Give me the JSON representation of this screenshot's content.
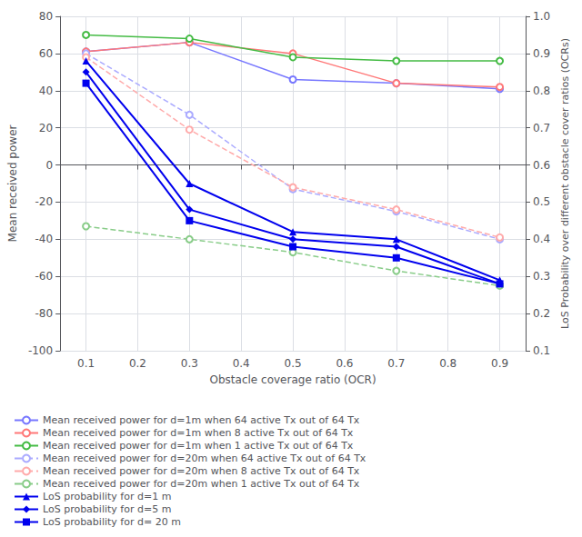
{
  "chart_data": {
    "type": "line",
    "xlabel": "Obstacle coverage ratio (OCR)",
    "ylabel": "Mean received power",
    "y2label": "LoS Probability over different obstacle cover ratios (OCRs)",
    "x": [
      0.1,
      0.3,
      0.5,
      0.7,
      0.9
    ],
    "series": [
      {
        "name": "Mean received power for d=1m when 64 active Tx out of 64 Tx",
        "color": "#7777FF",
        "marker": "circle",
        "line_style": "solid",
        "axis": "y",
        "values": [
          61,
          66,
          46,
          44,
          41
        ]
      },
      {
        "name": "Mean received power for d=1m when 8 active Tx out of 64 Tx",
        "color": "#FF7777",
        "marker": "circle",
        "line_style": "solid",
        "axis": "y",
        "values": [
          61,
          66,
          60,
          44,
          42
        ]
      },
      {
        "name": "Mean received power for d=1m when 1 active Tx out of 64 Tx",
        "color": "#44BB44",
        "marker": "circle",
        "line_style": "solid",
        "axis": "y",
        "values": [
          70,
          68,
          58,
          56,
          56
        ]
      },
      {
        "name": "Mean received power for d=20m when 64 active Tx out of 64 Tx",
        "color": "#AAAAFF",
        "marker": "circle",
        "line_style": "dashed",
        "axis": "y",
        "values": [
          60,
          27,
          -13,
          -25,
          -40
        ]
      },
      {
        "name": "Mean received power for d=20m when 8 active Tx out of 64 Tx",
        "color": "#FFAAAA",
        "marker": "circle",
        "line_style": "dashed",
        "axis": "y",
        "values": [
          58,
          19,
          -12,
          -24,
          -39
        ]
      },
      {
        "name": "Mean received power for d=20m when 1 active Tx out of 64 Tx",
        "color": "#88CC88",
        "marker": "circle",
        "line_style": "dashed",
        "axis": "y",
        "values": [
          -33,
          -40,
          -47,
          -57,
          -65
        ]
      },
      {
        "name": "LoS probability for d=1 m",
        "color": "#0000EE",
        "marker": "triangle",
        "line_style": "solid",
        "axis": "y2",
        "values": [
          0.88,
          0.55,
          0.42,
          0.4,
          0.29
        ]
      },
      {
        "name": "LoS probability for d=5 m",
        "color": "#0000EE",
        "marker": "diamond",
        "line_style": "solid",
        "axis": "y2",
        "values": [
          0.85,
          0.48,
          0.4,
          0.38,
          0.28
        ]
      },
      {
        "name": "LoS probability for d= 20 m",
        "color": "#0000EE",
        "marker": "square",
        "line_style": "solid",
        "axis": "y2",
        "values": [
          0.82,
          0.45,
          0.38,
          0.35,
          0.28
        ]
      }
    ],
    "xlim": [
      0.05,
      0.95
    ],
    "xticks": [
      0.1,
      0.2,
      0.3,
      0.4,
      0.5,
      0.6,
      0.7,
      0.8,
      0.9
    ],
    "ylim": [
      -100,
      80
    ],
    "yticks": [
      -100,
      -80,
      -60,
      -40,
      -20,
      0,
      20,
      40,
      60,
      80
    ],
    "y2lim": [
      0.1,
      1.0
    ],
    "y2ticks": [
      0.1,
      0.2,
      0.3,
      0.4,
      0.5,
      0.6,
      0.7,
      0.8,
      0.9,
      {
        "value": 1.0,
        "label": "1.0"
      }
    ],
    "grid": true,
    "legend": "lower left"
  }
}
